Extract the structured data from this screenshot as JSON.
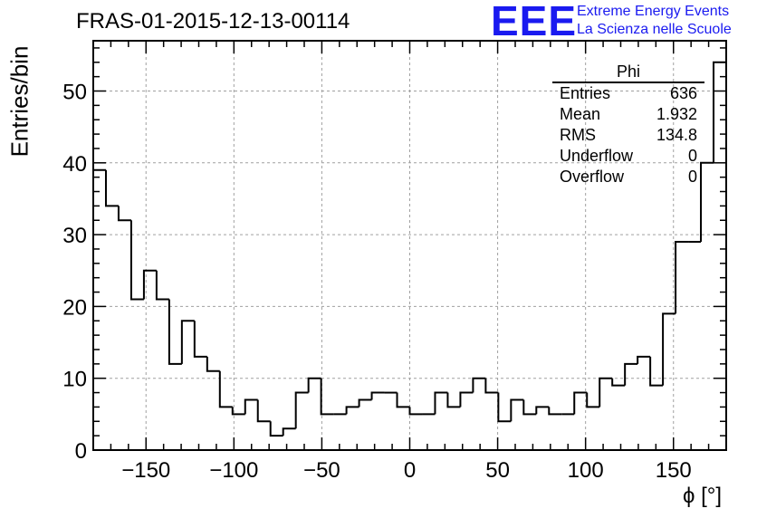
{
  "title": "FRAS-01-2015-12-13-00114",
  "logo": {
    "mark": "EEE",
    "line1": "Extreme Energy Events",
    "line2": "La Scienza nelle Scuole"
  },
  "stats": {
    "name": "Phi",
    "rows": [
      {
        "label": "Entries",
        "value": "636"
      },
      {
        "label": "Mean",
        "value": "1.932"
      },
      {
        "label": "RMS",
        "value": "134.8"
      },
      {
        "label": "Underflow",
        "value": "0"
      },
      {
        "label": "Overflow",
        "value": "0"
      }
    ]
  },
  "chart_data": {
    "type": "bar",
    "title": "FRAS-01-2015-12-13-00114",
    "xlabel": "ϕ [°]",
    "ylabel": "Entries/bin",
    "xlim": [
      -180,
      180
    ],
    "ylim": [
      0,
      57
    ],
    "grid": true,
    "bin_width": 7.2,
    "bin_edges_start": -180,
    "xticks": [
      -150,
      -100,
      -50,
      0,
      50,
      100,
      150
    ],
    "xtick_labels": [
      "−150",
      "−100",
      "−50",
      "0",
      "50",
      "100",
      "150"
    ],
    "yticks": [
      0,
      10,
      20,
      30,
      40,
      50
    ],
    "ytick_labels": [
      "0",
      "10",
      "20",
      "30",
      "40",
      "50"
    ],
    "values": [
      39,
      34,
      32,
      21,
      25,
      21,
      12,
      18,
      13,
      11,
      6,
      5,
      7,
      4,
      2,
      3,
      8,
      10,
      5,
      5,
      6,
      7,
      8,
      8,
      6,
      5,
      5,
      8,
      6,
      8,
      10,
      8,
      4,
      7,
      5,
      6,
      5,
      5,
      8,
      6,
      10,
      9,
      12,
      13,
      9,
      19,
      29,
      29,
      40,
      54
    ]
  }
}
